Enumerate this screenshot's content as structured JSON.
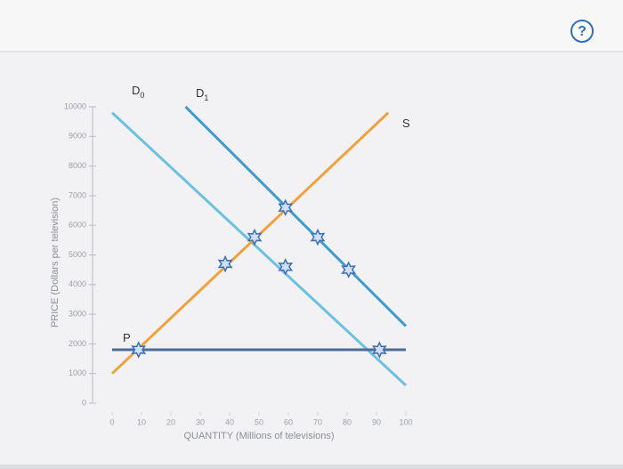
{
  "help_button": "?",
  "chart_data": {
    "type": "line",
    "xlabel": "QUANTITY (Millions of televisions)",
    "ylabel": "PRICE (Dollars per television)",
    "xlim": [
      0,
      100
    ],
    "ylim": [
      0,
      10000
    ],
    "xticks": [
      0,
      10,
      20,
      30,
      40,
      50,
      60,
      70,
      80,
      90,
      100
    ],
    "yticks": [
      0,
      1000,
      2000,
      3000,
      4000,
      5000,
      6000,
      7000,
      8000,
      9000,
      10000
    ],
    "series": [
      {
        "name": "D",
        "subscript": "0",
        "color": "#6cc0e0",
        "x": [
          0,
          100
        ],
        "values": [
          9800,
          600
        ]
      },
      {
        "name": "D",
        "subscript": "1",
        "color": "#3c9ccf",
        "x": [
          25,
          100
        ],
        "values": [
          10000,
          2600
        ]
      },
      {
        "name": "S",
        "color": "#f0a23a",
        "x": [
          0,
          94
        ],
        "values": [
          1000,
          9800
        ]
      },
      {
        "name": "P",
        "color": "#4a6b9c",
        "x": [
          0,
          100
        ],
        "values": [
          1800,
          1800
        ]
      }
    ],
    "points": {
      "color": "#3d6fb6",
      "x": [
        9,
        38.5,
        48.5,
        59,
        59,
        70,
        80.5,
        91
      ],
      "values": [
        1800,
        4700,
        5600,
        6600,
        4600,
        5600,
        4500,
        1800
      ]
    }
  }
}
